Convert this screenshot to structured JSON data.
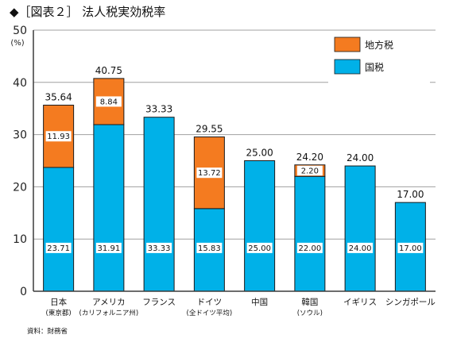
{
  "title": "◆［図表２］ 法人税実効税率",
  "source": "資料：財務省",
  "colors": {
    "local": "#f47b20",
    "national": "#00b1e8",
    "grid": "#a0a0a0",
    "axis": "#3c3c3c"
  },
  "chart_data": {
    "type": "bar",
    "stacked": true,
    "title": "法人税実効税率",
    "ylabel": "(%)",
    "ylim": [
      0,
      50
    ],
    "yticks": [
      0,
      10,
      20,
      30,
      40,
      50
    ],
    "grid": true,
    "legend_position": "top-right",
    "categories": [
      "日本",
      "アメリカ",
      "フランス",
      "ドイツ",
      "中国",
      "韓国",
      "イギリス",
      "シンガポール"
    ],
    "category_notes": [
      "(東京都)",
      "(カリフォルニア州)",
      "",
      "(全ドイツ平均)",
      "",
      "(ソウル)",
      "",
      ""
    ],
    "series": [
      {
        "name": "国税",
        "values": [
          23.71,
          31.91,
          33.33,
          15.83,
          25.0,
          22.0,
          24.0,
          17.0
        ],
        "labels": [
          "23.71",
          "31.91",
          "33.33",
          "15.83",
          "25.00",
          "22.00",
          "24.00",
          "17.00"
        ]
      },
      {
        "name": "地方税",
        "values": [
          11.93,
          8.84,
          0,
          13.72,
          0,
          2.2,
          0,
          0
        ],
        "labels": [
          "11.93",
          "8.84",
          "",
          "13.72",
          "",
          "2.20",
          "",
          ""
        ]
      }
    ],
    "totals": [
      "35.64",
      "40.75",
      "33.33",
      "29.55",
      "25.00",
      "24.20",
      "24.00",
      "17.00"
    ]
  }
}
